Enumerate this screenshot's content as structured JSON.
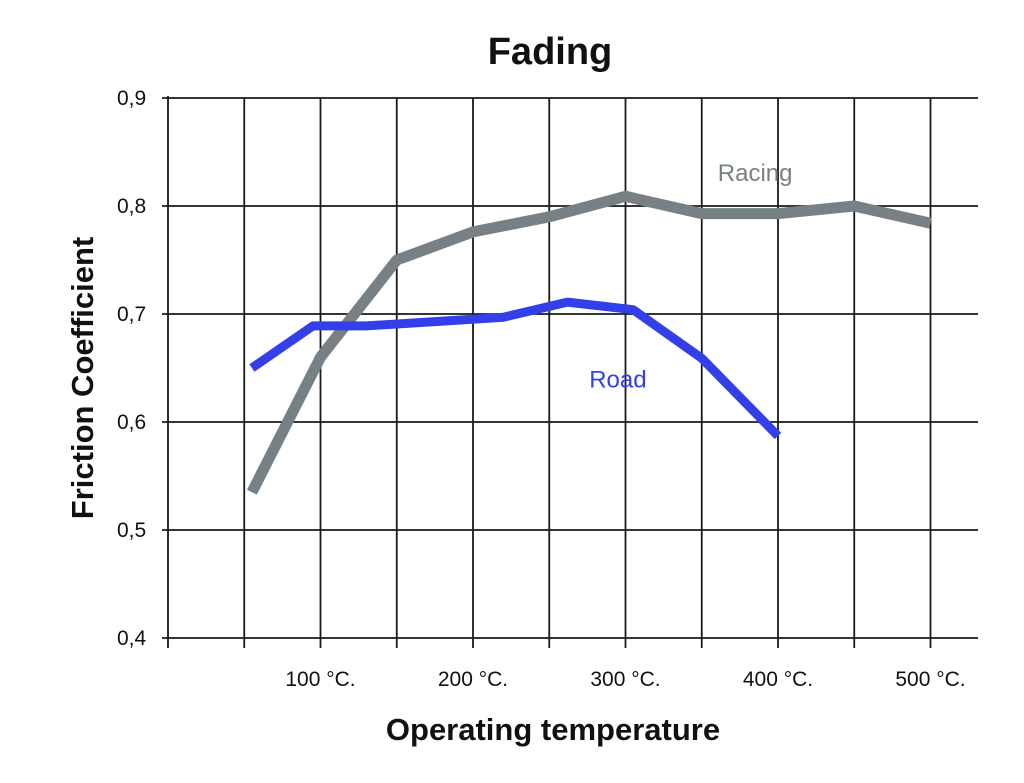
{
  "chart_data": {
    "type": "line",
    "title": "Fading",
    "xlabel": "Operating temperature",
    "ylabel": "Friction Coefficient",
    "x_ticks": [
      {
        "value": 100,
        "label": "100 °C."
      },
      {
        "value": 200,
        "label": "200 °C."
      },
      {
        "value": 300,
        "label": "300 °C."
      },
      {
        "value": 400,
        "label": "400 °C."
      },
      {
        "value": 500,
        "label": "500 °C."
      }
    ],
    "y_ticks": [
      {
        "value": 0.4,
        "label": "0,4"
      },
      {
        "value": 0.5,
        "label": "0,5"
      },
      {
        "value": 0.6,
        "label": "0,6"
      },
      {
        "value": 0.7,
        "label": "0,7"
      },
      {
        "value": 0.8,
        "label": "0,8"
      },
      {
        "value": 0.9,
        "label": "0,9"
      }
    ],
    "x_gridlines": [
      0,
      50,
      100,
      150,
      200,
      250,
      300,
      350,
      400,
      450,
      500
    ],
    "xlim": [
      0,
      530
    ],
    "ylim": [
      0.39,
      0.9
    ],
    "grid": true,
    "series": [
      {
        "name": "Racing",
        "color": "#778185",
        "x": [
          55,
          100,
          150,
          200,
          250,
          300,
          350,
          400,
          450,
          500
        ],
        "y": [
          0.535,
          0.66,
          0.75,
          0.776,
          0.79,
          0.809,
          0.793,
          0.793,
          0.8,
          0.784
        ]
      },
      {
        "name": "Road",
        "color": "#3340ea",
        "x": [
          55,
          95,
          130,
          175,
          220,
          262,
          305,
          350,
          400
        ],
        "y": [
          0.65,
          0.689,
          0.689,
          0.693,
          0.697,
          0.711,
          0.704,
          0.659,
          0.587
        ]
      }
    ]
  }
}
